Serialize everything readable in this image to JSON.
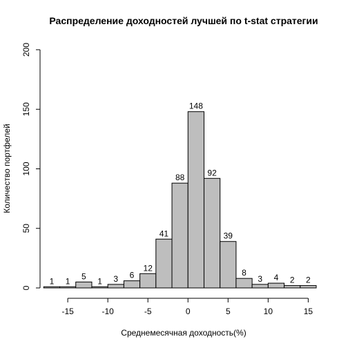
{
  "chart_data": {
    "type": "bar",
    "title": "Распределение доходностей лучшей по t-stat стратегии",
    "xlabel": "Среднемесячная доходность(%)",
    "ylabel": "Количество портфелей",
    "bin_edges": [
      -18,
      -16,
      -14,
      -12,
      -10,
      -8,
      -6,
      -4,
      -2,
      0,
      2,
      4,
      6,
      8,
      10,
      12,
      14,
      16
    ],
    "values": [
      1,
      1,
      5,
      1,
      3,
      6,
      12,
      41,
      88,
      148,
      92,
      39,
      8,
      3,
      4,
      2,
      2
    ],
    "xlim": [
      -18,
      16
    ],
    "ylim": [
      0,
      200
    ],
    "x_ticks": [
      "-15",
      "-10",
      "-5",
      "0",
      "5",
      "10",
      "15"
    ],
    "y_ticks": [
      "0",
      "50",
      "100",
      "150",
      "200"
    ],
    "colors": {
      "bar_fill": "#bebebe",
      "bar_stroke": "#000000"
    },
    "grid": false,
    "legend": "none"
  }
}
